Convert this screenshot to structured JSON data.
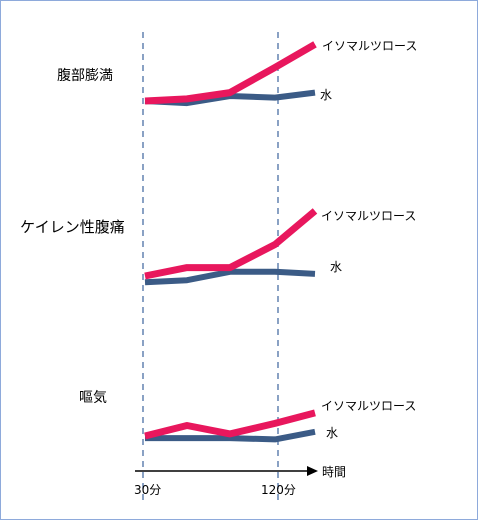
{
  "colors": {
    "isomaltulose": "#e8175d",
    "water": "#3b5b86",
    "reference_line": "#4a6fa5",
    "axis": "#000000",
    "frame": "#8eaadb"
  },
  "time_axis": {
    "label": "時間",
    "ticks": [
      "30分",
      "120分"
    ]
  },
  "chart_data": [
    {
      "type": "line",
      "title": "腹部膨満",
      "series": [
        {
          "name": "イソマルツロース",
          "color": "#e8175d",
          "values": [
            0.0,
            0.05,
            0.2,
            0.8,
            1.35
          ]
        },
        {
          "name": "水",
          "color": "#3b5b86",
          "values": [
            0.0,
            -0.05,
            0.12,
            0.08,
            0.2
          ]
        }
      ]
    },
    {
      "type": "line",
      "title": "ケイレン性腹痛",
      "series": [
        {
          "name": "イソマルツロース",
          "color": "#e8175d",
          "values": [
            0.0,
            0.2,
            0.2,
            0.75,
            1.55
          ]
        },
        {
          "name": "水",
          "color": "#3b5b86",
          "values": [
            -0.15,
            -0.1,
            0.1,
            0.1,
            0.05
          ]
        }
      ]
    },
    {
      "type": "line",
      "title": "嘔気",
      "series": [
        {
          "name": "イソマルツロース",
          "color": "#e8175d",
          "values": [
            0.0,
            0.25,
            0.05,
            0.3,
            0.55
          ]
        },
        {
          "name": "水",
          "color": "#3b5b86",
          "values": [
            -0.05,
            -0.05,
            -0.05,
            -0.08,
            0.1
          ]
        }
      ]
    }
  ]
}
